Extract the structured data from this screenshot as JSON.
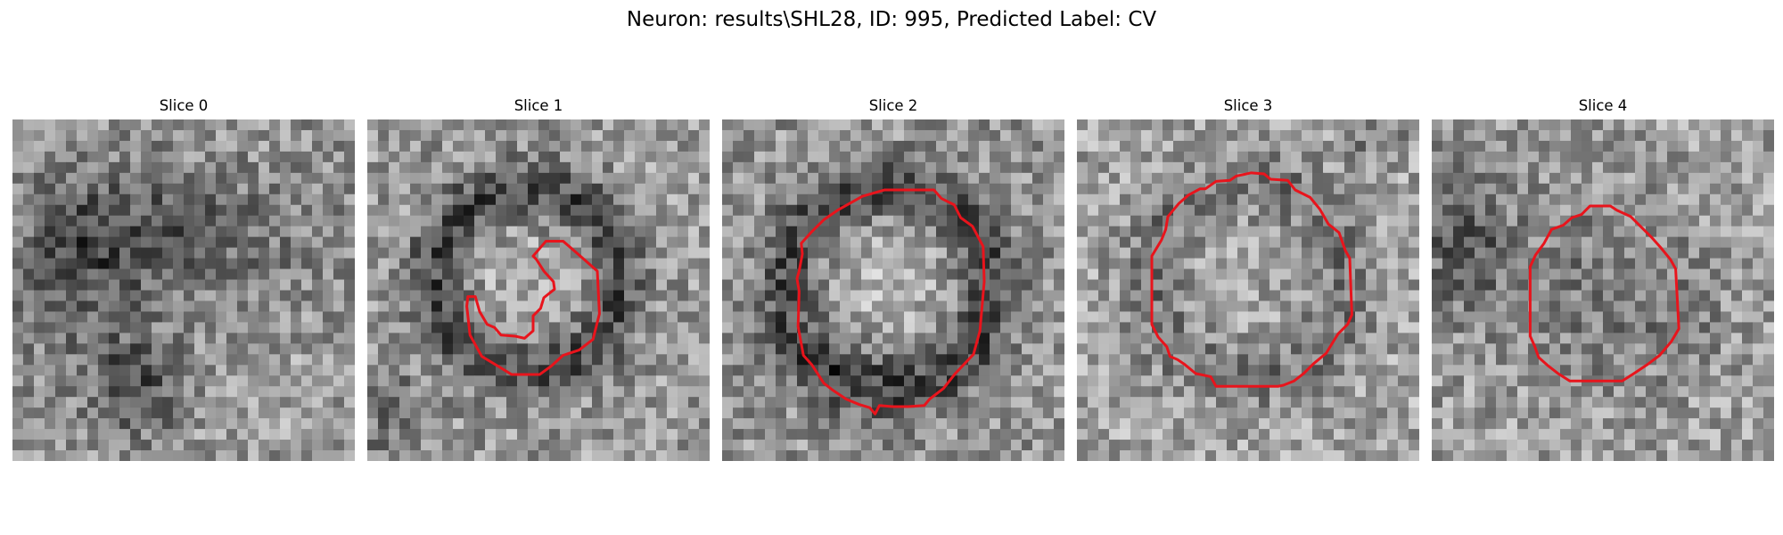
{
  "figure": {
    "title": "Neuron: results\\SHL28, ID: 995, Predicted Label: CV"
  },
  "colors": {
    "background": "#ffffff",
    "contour": "#e8141c",
    "colormap": "grayscale"
  },
  "slices": [
    {
      "label": "Slice 0",
      "has_contour": false,
      "pattern": "diffuse dark blob center-left, dark spot lower-left"
    },
    {
      "label": "Slice 1",
      "has_contour": true,
      "pattern": "dark ring around bright center, partial C-shaped contour"
    },
    {
      "label": "Slice 2",
      "has_contour": true,
      "pattern": "dark ring with bright center, octagonal contour"
    },
    {
      "label": "Slice 3",
      "has_contour": true,
      "pattern": "mottled texture, octagonal contour"
    },
    {
      "label": "Slice 4",
      "has_contour": true,
      "pattern": "dark region center and left, octagonal contour"
    }
  ]
}
